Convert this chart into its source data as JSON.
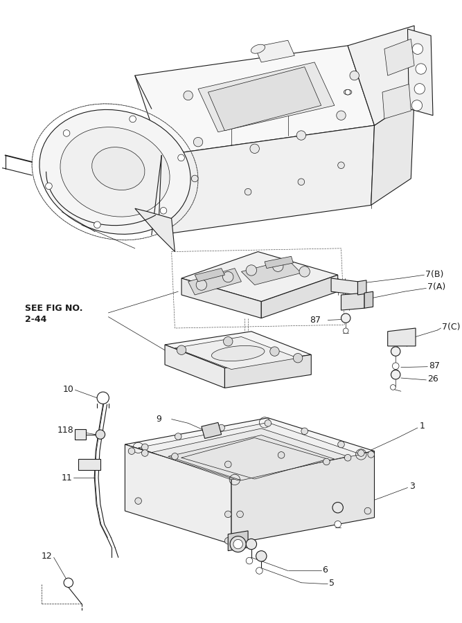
{
  "background_color": "#ffffff",
  "line_color": "#1a1a1a",
  "lw_main": 0.8,
  "lw_thin": 0.5,
  "lw_thick": 1.1,
  "labels": {
    "SEE_FIG_line1": "SEE FIG NO.",
    "SEE_FIG_line2": "2-44",
    "L1": "1",
    "L3": "3",
    "L5": "5",
    "L6": "6",
    "L7A": "7(A)",
    "L7B": "7(B)",
    "L7C": "7(C)",
    "L9": "9",
    "L10": "10",
    "L11": "11",
    "L12": "12",
    "L26": "26",
    "L87a": "87",
    "L87b": "87",
    "L118": "118"
  },
  "fig_width": 6.67,
  "fig_height": 9.0,
  "dpi": 100
}
